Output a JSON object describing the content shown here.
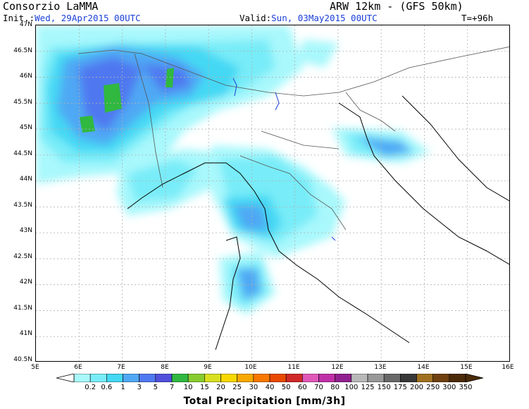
{
  "header": {
    "org": "Consorzio LaMMA",
    "model": "ARW 12km - (GFS 50km)",
    "init_label": "Init.:",
    "init_value": "Wed, 29Apr2015 00UTC",
    "valid_label": "Valid:",
    "valid_value": "Sun, 03May2015 00UTC",
    "lead_time": "T=+96h"
  },
  "axes": {
    "lat_labels": [
      "47N",
      "46.5N",
      "46N",
      "45.5N",
      "45N",
      "44.5N",
      "44N",
      "43.5N",
      "43N",
      "42.5N",
      "42N",
      "41.5N",
      "41N",
      "40.5N"
    ],
    "lon_labels": [
      "5E",
      "6E",
      "7E",
      "8E",
      "9E",
      "10E",
      "11E",
      "12E",
      "13E",
      "14E",
      "15E",
      "16E"
    ]
  },
  "legend": {
    "title": "Total Precipitation [mm/3h]",
    "labels": [
      "0.2",
      "0.6",
      "1",
      "3",
      "5",
      "7",
      "10",
      "15",
      "20",
      "25",
      "30",
      "40",
      "50",
      "60",
      "70",
      "80",
      "100",
      "125",
      "150",
      "175",
      "200",
      "250",
      "300",
      "350"
    ],
    "colors": [
      "#a8f8fc",
      "#78ecf8",
      "#44d8f4",
      "#50a8f4",
      "#5078f0",
      "#5050dc",
      "#30b840",
      "#88cc30",
      "#d8e020",
      "#f8d800",
      "#f8a800",
      "#f87800",
      "#e84800",
      "#d02828",
      "#e058b8",
      "#c030a8",
      "#902090",
      "#b8b8b8",
      "#989898",
      "#686868",
      "#383838",
      "#a07020",
      "#704010",
      "#4a2a08"
    ]
  },
  "colors": {
    "grid": "#b0b0b0",
    "border": "#333333",
    "coast": "#000000",
    "lakes": "#1a3fd8"
  }
}
